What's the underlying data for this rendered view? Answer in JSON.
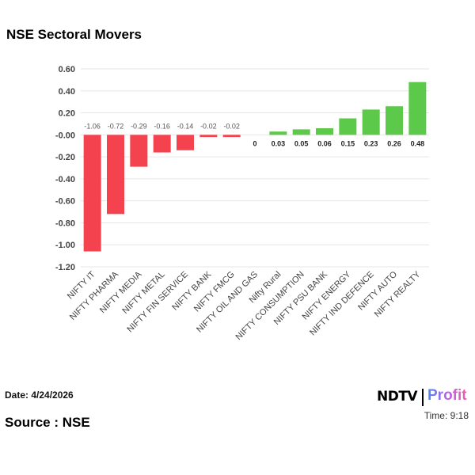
{
  "header": {
    "title": "NSE Sectoral Movers"
  },
  "footer": {
    "date": "Date: 4/24/2026",
    "time": "Time: 9:18",
    "source": "Source : NSE",
    "logo_ndtv": "NDTV",
    "logo_profit": "Profit"
  },
  "chart_data": {
    "type": "bar",
    "title": "NSE Sectoral Movers",
    "categories": [
      "NIFTY IT",
      "NIFTY PHARMA",
      "NIFTY MEDIA",
      "NIFTY METAL",
      "NIFTY FIN SERVICE",
      "NIFTY BANK",
      "NIFTY FMCG",
      "NIFTY OIL AND GAS",
      "Nifty Rural",
      "NIFTY CONSUMPTION",
      "NIFTY PSU BANK",
      "NIFTY ENERGY",
      "NIFTY IND DEFENCE",
      "NIFTY AUTO",
      "NIFTY REALTY"
    ],
    "values": [
      -1.06,
      -0.72,
      -0.29,
      -0.16,
      -0.14,
      -0.02,
      -0.02,
      0,
      0.03,
      0.05,
      0.06,
      0.15,
      0.23,
      0.26,
      0.48
    ],
    "data_labels": [
      "-1.06",
      "-0.72",
      "-0.29",
      "-0.16",
      "-0.14",
      "-0.02",
      "-0.02",
      "0",
      "0.03",
      "0.05",
      "0.06",
      "0.15",
      "0.23",
      "0.26",
      "0.48"
    ],
    "yticks": [
      "0.60",
      "0.40",
      "0.20",
      "-0.00",
      "-0.20",
      "-0.40",
      "-0.60",
      "-0.80",
      "-1.00",
      "-1.20"
    ],
    "ylim": [
      -1.2,
      0.6
    ],
    "grid": true,
    "colors": {
      "negative": "#f5424f",
      "positive": "#5dc94a",
      "grid": "#e6e6e6"
    }
  }
}
